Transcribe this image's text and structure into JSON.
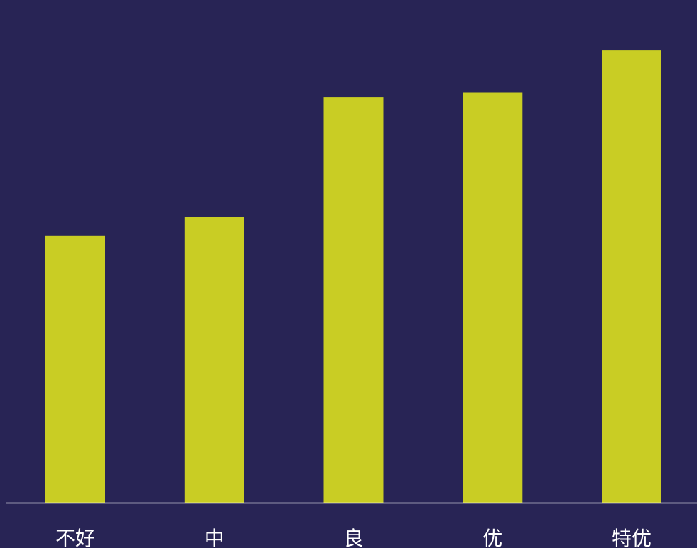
{
  "colors": {
    "background": "#282455",
    "bar": "#C9CD24",
    "axis": "#FFFFFF",
    "text": "#FFFFFF"
  },
  "chart_data": {
    "type": "bar",
    "categories": [
      "不好",
      "中",
      "良",
      "优",
      "特优"
    ],
    "values": [
      57,
      61,
      86.5,
      87.5,
      96.5
    ],
    "ylim": [
      0,
      100
    ],
    "grid": false,
    "legend": "none",
    "title": "",
    "xlabel": "",
    "ylabel": ""
  }
}
